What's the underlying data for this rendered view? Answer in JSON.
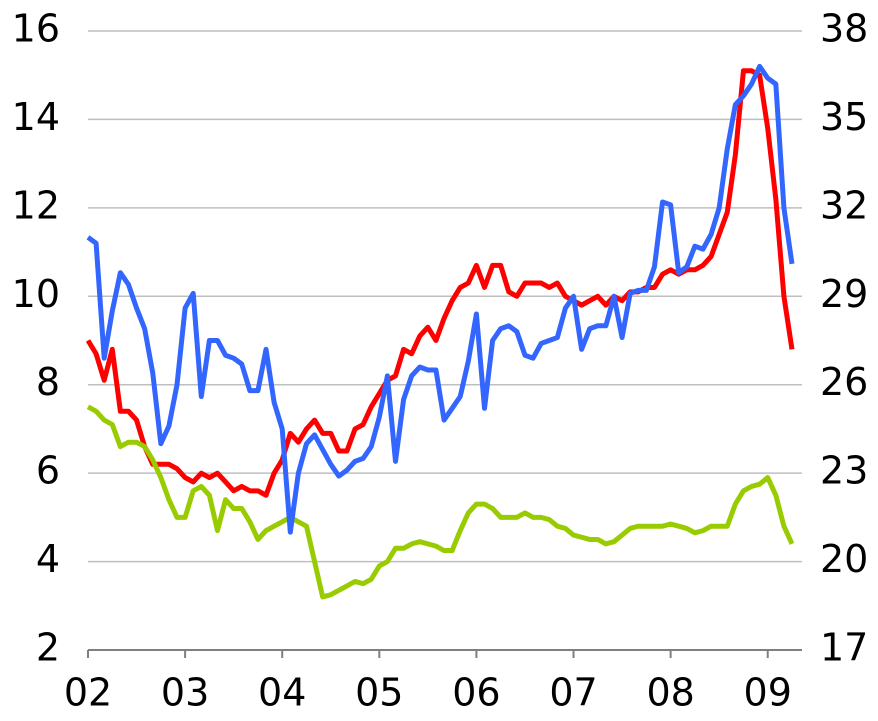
{
  "chart_data": {
    "type": "line",
    "categories": [
      "02",
      null,
      null,
      null,
      null,
      null,
      null,
      null,
      null,
      null,
      null,
      null,
      "03",
      null,
      null,
      null,
      null,
      null,
      null,
      null,
      null,
      null,
      null,
      null,
      "04",
      null,
      null,
      null,
      null,
      null,
      null,
      null,
      null,
      null,
      null,
      null,
      "05",
      null,
      null,
      null,
      null,
      null,
      null,
      null,
      null,
      null,
      null,
      null,
      "06",
      null,
      null,
      null,
      null,
      null,
      null,
      null,
      null,
      null,
      null,
      null,
      "07",
      null,
      null,
      null,
      null,
      null,
      null,
      null,
      null,
      null,
      null,
      null,
      "08",
      null,
      null,
      null,
      null,
      null,
      null,
      null,
      null,
      null,
      null,
      null,
      "09",
      null,
      null,
      null
    ],
    "series": [
      {
        "color": "#ff0000",
        "values": [
          9.0,
          8.7,
          8.1,
          8.8,
          7.4,
          7.4,
          7.2,
          6.6,
          6.2,
          6.2,
          6.2,
          6.1,
          5.9,
          5.8,
          6.0,
          5.9,
          6.0,
          5.8,
          5.6,
          5.7,
          5.6,
          5.6,
          5.5,
          6.0,
          6.3,
          6.9,
          6.7,
          7.0,
          7.2,
          6.9,
          6.9,
          6.5,
          6.5,
          7.0,
          7.1,
          7.5,
          7.8,
          8.1,
          8.2,
          8.8,
          8.7,
          9.1,
          9.3,
          9.0,
          9.5,
          9.9,
          10.2,
          10.3,
          10.7,
          10.2,
          10.7,
          10.7,
          10.1,
          10.0,
          10.3,
          10.3,
          10.3,
          10.2,
          10.3,
          10.0,
          9.9,
          9.8,
          9.9,
          10.0,
          9.8,
          10.0,
          9.9,
          10.1,
          10.1,
          10.2,
          10.2,
          10.5,
          10.6,
          10.5,
          10.6,
          10.6,
          10.7,
          10.9,
          11.4,
          11.9,
          13.2,
          15.1,
          15.1,
          15.0,
          13.8,
          12.2,
          10.0,
          8.8
        ]
      },
      {
        "color": "#99cc00",
        "values": [
          7.5,
          7.4,
          7.2,
          7.1,
          6.6,
          6.7,
          6.7,
          6.6,
          6.3,
          5.9,
          5.4,
          5.0,
          5.0,
          5.6,
          5.7,
          5.5,
          4.7,
          5.4,
          5.2,
          5.2,
          4.9,
          4.5,
          4.7,
          4.8,
          4.9,
          5.0,
          4.9,
          4.8,
          4.0,
          3.2,
          3.25,
          3.35,
          3.45,
          3.55,
          3.5,
          3.6,
          3.9,
          4.0,
          4.3,
          4.3,
          4.4,
          4.45,
          4.4,
          4.35,
          4.25,
          4.25,
          4.7,
          5.1,
          5.3,
          5.3,
          5.2,
          5.0,
          5.0,
          5.0,
          5.1,
          5.0,
          5.0,
          4.95,
          4.8,
          4.75,
          4.6,
          4.55,
          4.5,
          4.5,
          4.4,
          4.45,
          4.6,
          4.75,
          4.8,
          4.8,
          4.8,
          4.8,
          4.85,
          4.8,
          4.75,
          4.65,
          4.7,
          4.8,
          4.8,
          4.8,
          5.3,
          5.6,
          5.7,
          5.75,
          5.9,
          5.5,
          4.8,
          4.4
        ]
      },
      {
        "color": "#3366ff",
        "axis": "y2",
        "values": [
          31.0,
          30.8,
          26.9,
          28.5,
          29.8,
          29.4,
          28.6,
          27.9,
          26.4,
          24.0,
          24.6,
          26.0,
          28.6,
          29.1,
          25.6,
          27.5,
          27.5,
          27.0,
          26.9,
          26.7,
          25.8,
          25.8,
          27.2,
          25.4,
          24.5,
          21.0,
          23.0,
          24.0,
          24.3,
          23.8,
          23.3,
          22.9,
          23.1,
          23.4,
          23.5,
          23.9,
          24.9,
          26.3,
          23.4,
          25.5,
          26.3,
          26.6,
          26.5,
          26.5,
          24.8,
          25.2,
          25.6,
          26.8,
          28.4,
          25.2,
          27.5,
          27.9,
          28.0,
          27.8,
          27.0,
          26.9,
          27.4,
          27.5,
          27.6,
          28.6,
          29.0,
          27.2,
          27.9,
          28.0,
          28.0,
          29.0,
          27.6,
          29.1,
          29.2,
          29.2,
          30.0,
          32.2,
          32.1,
          29.8,
          30.0,
          30.7,
          30.6,
          31.1,
          32.0,
          34.0,
          35.5,
          35.8,
          36.2,
          36.8,
          36.4,
          36.2,
          32.0,
          30.1
        ]
      }
    ],
    "ylim": [
      2,
      16
    ],
    "yticks": [
      2,
      4,
      6,
      8,
      10,
      12,
      14,
      16
    ],
    "y2lim": [
      17,
      38
    ],
    "y2ticks": [
      17,
      20,
      23,
      26,
      29,
      32,
      35,
      38
    ],
    "grid": true
  }
}
